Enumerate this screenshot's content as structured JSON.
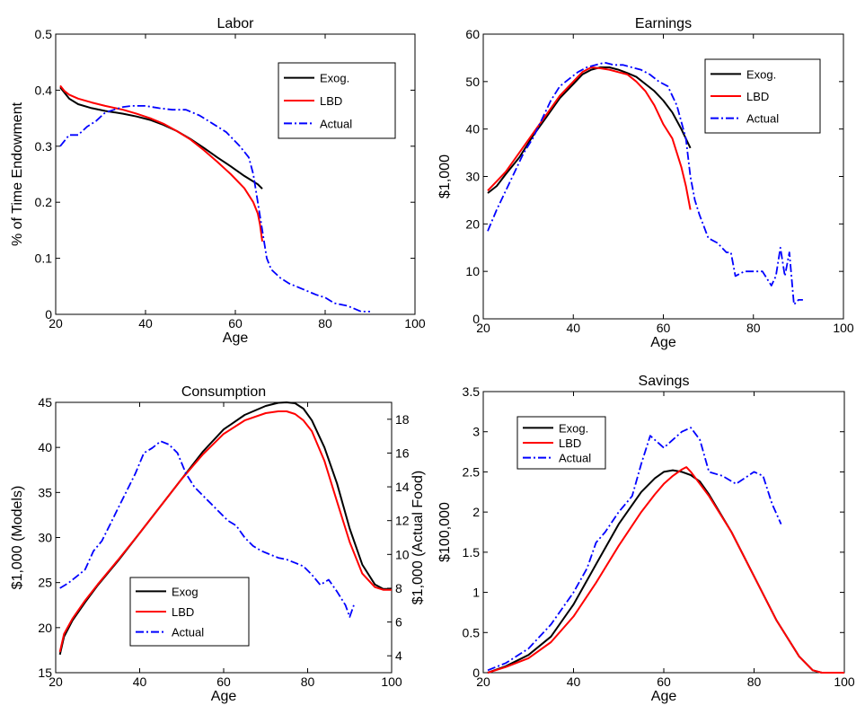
{
  "chart_data": [
    {
      "id": "labor",
      "type": "line",
      "title": "Labor",
      "xlabel": "Age",
      "ylabel": "% of Time Endowment",
      "xlim": [
        20,
        100
      ],
      "ylim": [
        0,
        0.5
      ],
      "xticks": [
        "20",
        "40",
        "60",
        "80",
        "100"
      ],
      "yticks": [
        "0",
        "0.1",
        "0.2",
        "0.3",
        "0.4",
        "0.5"
      ],
      "legend": "top-right",
      "series": [
        {
          "name": "Exog.",
          "color": "#000000",
          "dash": "solid",
          "x": [
            21,
            22,
            23,
            25,
            28,
            31,
            35,
            38,
            41,
            44,
            47,
            50,
            53,
            56,
            59,
            62,
            65,
            66
          ],
          "y": [
            0.405,
            0.395,
            0.385,
            0.375,
            0.368,
            0.363,
            0.358,
            0.353,
            0.347,
            0.338,
            0.327,
            0.313,
            0.297,
            0.28,
            0.264,
            0.247,
            0.232,
            0.224
          ]
        },
        {
          "name": "LBD",
          "color": "#ff0000",
          "dash": "solid",
          "x": [
            21,
            22,
            23,
            25,
            28,
            31,
            35,
            38,
            41,
            44,
            47,
            50,
            53,
            56,
            59,
            62,
            64,
            65,
            65.5,
            66
          ],
          "y": [
            0.408,
            0.398,
            0.392,
            0.385,
            0.378,
            0.372,
            0.365,
            0.358,
            0.35,
            0.34,
            0.327,
            0.312,
            0.293,
            0.272,
            0.25,
            0.225,
            0.2,
            0.18,
            0.16,
            0.13
          ]
        },
        {
          "name": "Actual",
          "color": "#0000ff",
          "dash": "dashdot",
          "x": [
            21,
            23,
            25,
            27,
            29,
            31,
            33,
            35,
            37,
            40,
            43,
            46,
            49,
            52,
            55,
            58,
            61,
            63,
            64,
            65,
            66,
            67,
            68,
            70,
            72,
            75,
            78,
            80,
            82,
            85,
            88,
            90
          ],
          "y": [
            0.3,
            0.32,
            0.32,
            0.335,
            0.345,
            0.36,
            0.365,
            0.37,
            0.372,
            0.372,
            0.368,
            0.365,
            0.365,
            0.355,
            0.34,
            0.325,
            0.3,
            0.28,
            0.25,
            0.2,
            0.15,
            0.1,
            0.08,
            0.065,
            0.055,
            0.045,
            0.035,
            0.03,
            0.02,
            0.015,
            0.005,
            0.005
          ]
        }
      ]
    },
    {
      "id": "earnings",
      "type": "line",
      "title": "Earnings",
      "xlabel": "Age",
      "ylabel": "$1,000",
      "xlim": [
        20,
        100
      ],
      "ylim": [
        0,
        60
      ],
      "xticks": [
        "20",
        "40",
        "60",
        "80",
        "100"
      ],
      "yticks": [
        "0",
        "10",
        "20",
        "30",
        "40",
        "50",
        "60"
      ],
      "legend": "top-right",
      "series": [
        {
          "name": "Exog.",
          "color": "#000000",
          "dash": "solid",
          "x": [
            21,
            23,
            25,
            28,
            31,
            34,
            37,
            40,
            42,
            44,
            46,
            48,
            50,
            52,
            54,
            56,
            58,
            60,
            62,
            64,
            66
          ],
          "y": [
            26.5,
            28,
            30.5,
            34,
            38.5,
            42.5,
            46.5,
            49.5,
            51.5,
            52.5,
            53,
            53,
            52.5,
            51.8,
            51,
            49.5,
            48,
            46,
            43.5,
            40,
            36
          ]
        },
        {
          "name": "LBD",
          "color": "#ff0000",
          "dash": "solid",
          "x": [
            21,
            23,
            25,
            28,
            31,
            34,
            37,
            40,
            42,
            44,
            46,
            48,
            50,
            52,
            54,
            56,
            58,
            60,
            62,
            63,
            64,
            65,
            66
          ],
          "y": [
            27,
            29,
            31,
            35,
            39,
            43,
            47,
            50,
            52,
            53,
            52.8,
            52.5,
            52,
            51.5,
            50,
            48,
            45,
            41,
            38,
            35,
            32,
            28,
            23
          ]
        },
        {
          "name": "Actual",
          "color": "#0000ff",
          "dash": "dashdot",
          "x": [
            21,
            23,
            25,
            27,
            29,
            31,
            33,
            35,
            37,
            39,
            41,
            43,
            45,
            47,
            49,
            51,
            53,
            55,
            57,
            59,
            61,
            63,
            65,
            66,
            67,
            68,
            70,
            72,
            74,
            75,
            76,
            78,
            80,
            82,
            84,
            85,
            86,
            87,
            88,
            89,
            90,
            91
          ],
          "y": [
            18.5,
            23,
            27,
            31,
            35,
            38,
            42,
            46,
            49,
            50.5,
            52,
            53,
            53.5,
            54,
            53.5,
            53.5,
            53,
            52.5,
            51.5,
            50,
            49,
            45,
            38,
            30,
            25,
            22,
            17,
            16,
            14,
            14,
            9,
            10,
            10,
            10,
            7,
            9,
            15,
            9,
            14,
            3,
            4,
            4
          ]
        }
      ]
    },
    {
      "id": "consumption",
      "type": "line",
      "title": "Consumption",
      "xlabel": "Age",
      "ylabel": "$1,000 (Models)",
      "ylabel_right": "$1,000 (Actual Food)",
      "xlim": [
        20,
        100
      ],
      "ylim": [
        15,
        45
      ],
      "ylim_right": [
        3,
        19
      ],
      "xticks": [
        "20",
        "40",
        "60",
        "80",
        "100"
      ],
      "yticks": [
        "15",
        "20",
        "25",
        "30",
        "35",
        "40",
        "45"
      ],
      "yticks_right": [
        "4",
        "6",
        "8",
        "10",
        "12",
        "14",
        "16",
        "18"
      ],
      "legend": "bottom-center",
      "series": [
        {
          "name": "Exog",
          "color": "#000000",
          "dash": "solid",
          "axis": "left",
          "x": [
            21,
            22,
            24,
            27,
            30,
            35,
            40,
            45,
            50,
            55,
            60,
            65,
            70,
            73,
            75,
            77,
            79,
            81,
            84,
            87,
            90,
            93,
            96,
            98,
            100
          ],
          "y": [
            17,
            19,
            20.8,
            22.8,
            24.7,
            27.5,
            30.5,
            33.5,
            36.5,
            39.5,
            42,
            43.6,
            44.6,
            44.95,
            45,
            44.9,
            44.3,
            43,
            40,
            36,
            31,
            27,
            24.8,
            24.3,
            24.3
          ]
        },
        {
          "name": "LBD",
          "color": "#ff0000",
          "dash": "solid",
          "axis": "left",
          "x": [
            21,
            22,
            24,
            27,
            30,
            35,
            40,
            45,
            50,
            55,
            60,
            65,
            70,
            73,
            75,
            77,
            79,
            81,
            84,
            87,
            90,
            93,
            96,
            98,
            100
          ],
          "y": [
            17.3,
            19.3,
            21,
            23,
            24.8,
            27.6,
            30.5,
            33.5,
            36.5,
            39.2,
            41.5,
            43,
            43.8,
            44,
            44,
            43.7,
            43,
            41.8,
            38.5,
            34,
            29.5,
            26,
            24.5,
            24.2,
            24.2
          ]
        },
        {
          "name": "Actual",
          "color": "#0000ff",
          "dash": "dashdot",
          "axis": "right",
          "x": [
            21,
            23,
            25,
            27,
            29,
            31,
            33,
            35,
            37,
            39,
            41,
            43,
            45,
            47,
            49,
            51,
            53,
            55,
            57,
            59,
            61,
            63,
            65,
            67,
            69,
            71,
            73,
            75,
            77,
            79,
            81,
            83,
            85,
            87,
            89,
            90,
            91
          ],
          "y": [
            8,
            8.3,
            8.7,
            9.1,
            10.2,
            10.8,
            11.8,
            12.8,
            13.8,
            14.8,
            16,
            16.3,
            16.7,
            16.5,
            16,
            14.8,
            14,
            13.5,
            13,
            12.5,
            12,
            11.7,
            11,
            10.5,
            10.2,
            10,
            9.8,
            9.7,
            9.5,
            9.3,
            8.8,
            8.2,
            8.5,
            7.8,
            7,
            6.3,
            7
          ]
        }
      ]
    },
    {
      "id": "savings",
      "type": "line",
      "title": "Savings",
      "xlabel": "Age",
      "ylabel": "$100,000",
      "xlim": [
        20,
        100
      ],
      "ylim": [
        0,
        3.5
      ],
      "xticks": [
        "20",
        "40",
        "60",
        "80",
        "100"
      ],
      "yticks": [
        "0",
        "0.5",
        "1",
        "1.5",
        "2",
        "2.5",
        "3",
        "3.5"
      ],
      "legend": "top-left",
      "series": [
        {
          "name": "Exog.",
          "color": "#000000",
          "dash": "solid",
          "x": [
            21,
            25,
            30,
            35,
            40,
            45,
            50,
            55,
            58,
            60,
            62,
            64,
            66,
            68,
            70,
            75,
            80,
            85,
            90,
            93,
            95,
            100
          ],
          "y": [
            0,
            0.08,
            0.22,
            0.45,
            0.85,
            1.35,
            1.85,
            2.25,
            2.42,
            2.5,
            2.52,
            2.5,
            2.46,
            2.38,
            2.22,
            1.75,
            1.2,
            0.65,
            0.2,
            0.03,
            0,
            0
          ]
        },
        {
          "name": "LBD",
          "color": "#ff0000",
          "dash": "solid",
          "x": [
            21,
            25,
            30,
            35,
            40,
            45,
            50,
            55,
            58,
            60,
            62,
            64,
            65,
            66,
            68,
            70,
            75,
            80,
            85,
            90,
            93,
            95,
            100
          ],
          "y": [
            0,
            0.07,
            0.18,
            0.38,
            0.7,
            1.12,
            1.58,
            2,
            2.22,
            2.35,
            2.45,
            2.53,
            2.56,
            2.5,
            2.35,
            2.2,
            1.75,
            1.2,
            0.65,
            0.2,
            0.03,
            0,
            0
          ]
        },
        {
          "name": "Actual",
          "color": "#0000ff",
          "dash": "dashdot",
          "x": [
            21,
            25,
            30,
            35,
            40,
            43,
            45,
            47,
            50,
            53,
            55,
            57,
            60,
            62,
            64,
            66,
            68,
            70,
            73,
            76,
            80,
            82,
            84,
            86
          ],
          "y": [
            0.03,
            0.12,
            0.3,
            0.6,
            1,
            1.3,
            1.62,
            1.75,
            2,
            2.2,
            2.6,
            2.95,
            2.8,
            2.9,
            3,
            3.05,
            2.9,
            2.5,
            2.45,
            2.35,
            2.5,
            2.45,
            2.1,
            1.85
          ]
        }
      ]
    }
  ]
}
